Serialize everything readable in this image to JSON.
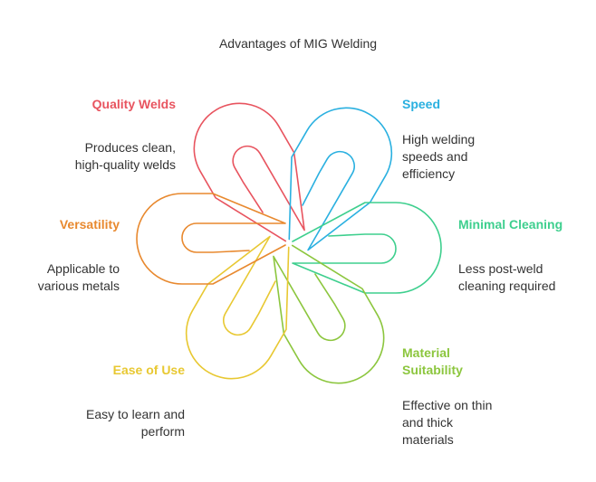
{
  "title": "Advantages of MIG Welding",
  "items": [
    {
      "id": "quality-welds",
      "label": "Quality Welds",
      "desc": "Produces clean,\nhigh-quality welds",
      "color": "#e8545f"
    },
    {
      "id": "speed",
      "label": "Speed",
      "desc": "High welding\nspeeds and\nefficiency",
      "color": "#2ab0e0"
    },
    {
      "id": "minimal-cleaning",
      "label": "Minimal Cleaning",
      "desc": "Less post-weld\ncleaning required",
      "color": "#3ecf8e"
    },
    {
      "id": "material-suitability",
      "label": "Material\nSuitability",
      "desc": "Effective on thin\nand thick\nmaterials",
      "color": "#8cc63e"
    },
    {
      "id": "ease-of-use",
      "label": "Ease of Use",
      "desc": "Easy to learn and\nperform",
      "color": "#e8c832"
    },
    {
      "id": "versatility",
      "label": "Versatility",
      "desc": "Applicable to\nvarious metals",
      "color": "#e8892f"
    }
  ]
}
